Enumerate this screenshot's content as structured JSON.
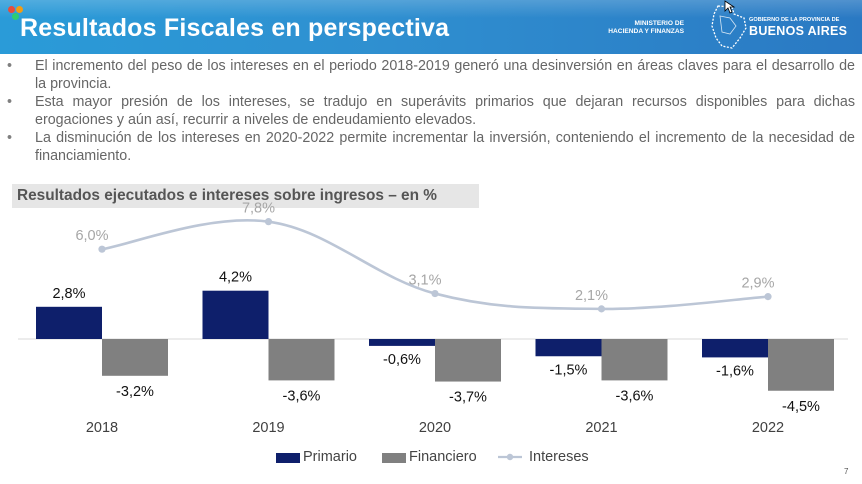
{
  "header": {
    "title": "Resultados Fiscales en perspectiva",
    "ministry_line1": "MINISTERIO DE",
    "ministry_line2": "HACIENDA Y FINANZAS",
    "gob_small": "GOBIERNO DE LA PROVINCIA DE",
    "gob_main": "BUENOS AIRES"
  },
  "bullets": [
    "El incremento del peso de los intereses en el periodo 2018-2019 generó una desinversión en áreas claves para el desarrollo de la provincia.",
    "Esta mayor presión de los intereses, se tradujo en superávits primarios que dejaran recursos disponibles para dichas erogaciones y aún así, recurrir a niveles de endeudamiento elevados.",
    "La disminución de los intereses en 2020-2022 permite incrementar la inversión, conteniendo el incremento de la necesidad de financiamiento."
  ],
  "bullet_char": "•",
  "chart_data": {
    "type": "bar",
    "title": "Resultados ejecutados e intereses sobre ingresos – en %",
    "categories": [
      "2018",
      "2019",
      "2020",
      "2021",
      "2022"
    ],
    "series": [
      {
        "name": "Primario",
        "type": "bar",
        "color": "#0e1f6b",
        "values": [
          2.8,
          4.2,
          -0.6,
          -1.5,
          -1.6
        ],
        "labels": [
          "2,8%",
          "4,2%",
          "-0,6%",
          "-1,5%",
          "-1,6%"
        ]
      },
      {
        "name": "Financiero",
        "type": "bar",
        "color": "#808080",
        "values": [
          -3.2,
          -3.6,
          -3.7,
          -3.6,
          -4.5
        ],
        "labels": [
          "-3,2%",
          "-3,6%",
          "-3,7%",
          "-3,6%",
          "-4,5%"
        ]
      },
      {
        "name": "Intereses",
        "type": "line",
        "color": "#bcc6d6",
        "values": [
          6.0,
          7.8,
          3.1,
          2.1,
          2.9
        ],
        "labels": [
          "6,0%",
          "7,8%",
          "3,1%",
          "2,1%",
          "2,9%"
        ]
      }
    ],
    "legend_position": "bottom",
    "grid": false
  },
  "legend": [
    "Primario",
    "Financiero",
    "Intereses"
  ],
  "page_number": "7"
}
